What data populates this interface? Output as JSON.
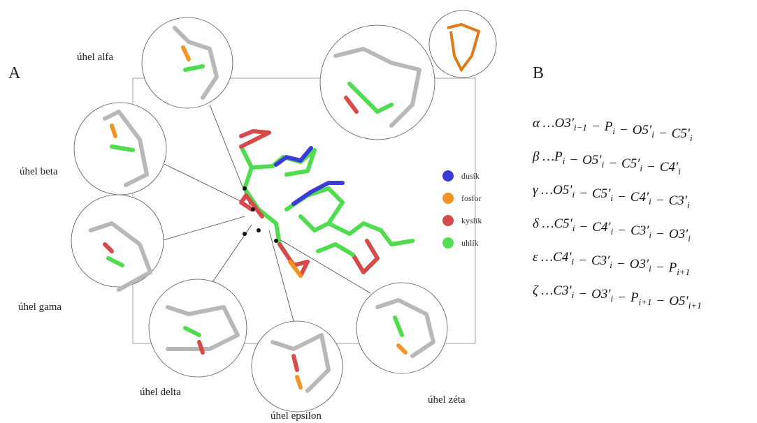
{
  "panels": {
    "a": "A",
    "b": "B"
  },
  "angle_labels": [
    "úhel alfa",
    "úhel beta",
    "úhel gama",
    "úhel delta",
    "úhel epsilon",
    "úhel zéta"
  ],
  "legend": [
    {
      "name": "dusík",
      "color": "#3b3bd8"
    },
    {
      "name": "fosfor",
      "color": "#f39323"
    },
    {
      "name": "kyslík",
      "color": "#d84a4a"
    },
    {
      "name": "uhlík",
      "color": "#52e052"
    }
  ],
  "formula_separator": "−",
  "formulas": [
    {
      "symbol": "α …",
      "terms": [
        {
          "base": "O3′",
          "sub": "i−1"
        },
        {
          "base": "P",
          "sub": "i"
        },
        {
          "base": "O5′",
          "sub": "i"
        },
        {
          "base": "C5′",
          "sub": "i"
        }
      ]
    },
    {
      "symbol": "β …",
      "terms": [
        {
          "base": "P",
          "sub": "i"
        },
        {
          "base": "O5′",
          "sub": "i"
        },
        {
          "base": "C5′",
          "sub": "i"
        },
        {
          "base": "C4′",
          "sub": "i"
        }
      ]
    },
    {
      "symbol": "γ …",
      "terms": [
        {
          "base": "O5′",
          "sub": "i"
        },
        {
          "base": "C5′",
          "sub": "i"
        },
        {
          "base": "C4′",
          "sub": "i"
        },
        {
          "base": "C3′",
          "sub": "i"
        }
      ]
    },
    {
      "symbol": "δ …",
      "terms": [
        {
          "base": "C5′",
          "sub": "i"
        },
        {
          "base": "C4′",
          "sub": "i"
        },
        {
          "base": "C3′",
          "sub": "i"
        },
        {
          "base": "O3′",
          "sub": "i"
        }
      ]
    },
    {
      "symbol": "ε …",
      "terms": [
        {
          "base": "C4′",
          "sub": "i"
        },
        {
          "base": "C3′",
          "sub": "i"
        },
        {
          "base": "O3′",
          "sub": "i"
        },
        {
          "base": "P",
          "sub": "i+1"
        }
      ]
    },
    {
      "symbol": "ζ …",
      "terms": [
        {
          "base": "C3′",
          "sub": "i"
        },
        {
          "base": "O3′",
          "sub": "i"
        },
        {
          "base": "P",
          "sub": "i+1"
        },
        {
          "base": "O5′",
          "sub": "i+1"
        }
      ]
    }
  ]
}
